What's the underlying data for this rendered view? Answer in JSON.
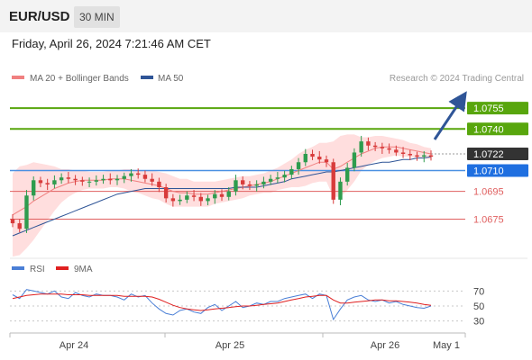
{
  "header": {
    "pair": "EUR/USD",
    "timeframe": "30 MIN"
  },
  "datetime": "Friday, April 26, 2024 7:21:46 AM CET",
  "copyright": "Research © 2024 Trading Central",
  "colors": {
    "resistance": "#58a60d",
    "support": "#e06060",
    "pivot": "#4a90e2",
    "up": "#2e9c4e",
    "down": "#d83b3b",
    "ma50": "#2f5597",
    "ma20": "#f08080",
    "band": "#ffd8d8",
    "rsi": "#4a7fd6",
    "rsi_ma": "#e02020",
    "arrow": "#2f5597",
    "current": "#333333"
  },
  "chart_data": [
    {
      "type": "candlestick",
      "name": "price",
      "legend": [
        "MA 20 + Bollinger Bands",
        "MA 50"
      ],
      "x_tick_labels": [
        "Apr 24",
        "Apr 25",
        "Apr 26",
        "May 1"
      ],
      "ylim": [
        1.065,
        1.077
      ],
      "levels": [
        {
          "value": 1.0755,
          "label": "1.0755",
          "kind": "resistance"
        },
        {
          "value": 1.074,
          "label": "1.0740",
          "kind": "resistance"
        },
        {
          "value": 1.071,
          "label": "1.0710",
          "kind": "pivot"
        },
        {
          "value": 1.0695,
          "label": "1.0695",
          "kind": "support"
        },
        {
          "value": 1.0675,
          "label": "1.0675",
          "kind": "support"
        }
      ],
      "current_price": {
        "value": 1.0722,
        "label": "1.0722"
      },
      "closes": [
        1.0672,
        1.0668,
        1.0692,
        1.0703,
        1.0701,
        1.07,
        1.0703,
        1.0705,
        1.0704,
        1.0703,
        1.0702,
        1.0702,
        1.0703,
        1.0704,
        1.0703,
        1.0704,
        1.0706,
        1.0708,
        1.0707,
        1.0704,
        1.0702,
        1.0698,
        1.069,
        1.0688,
        1.0689,
        1.0692,
        1.0691,
        1.0688,
        1.069,
        1.0693,
        1.0691,
        1.0695,
        1.0703,
        1.07,
        1.0699,
        1.07,
        1.0702,
        1.0704,
        1.0705,
        1.0707,
        1.0711,
        1.0716,
        1.0722,
        1.072,
        1.0718,
        1.0716,
        1.0689,
        1.0702,
        1.0712,
        1.0723,
        1.0731,
        1.0728,
        1.0727,
        1.0726,
        1.0725,
        1.0723,
        1.0722,
        1.0721,
        1.072,
        1.0721,
        1.072
      ],
      "ma50": [
        1.0663,
        1.0665,
        1.0667,
        1.0669,
        1.0671,
        1.0673,
        1.0675,
        1.0677,
        1.0679,
        1.0681,
        1.0683,
        1.0685,
        1.0687,
        1.0689,
        1.0691,
        1.0693,
        1.0694,
        1.0695,
        1.0696,
        1.0697,
        1.0697,
        1.0697,
        1.0697,
        1.0697,
        1.0697,
        1.0697,
        1.0697,
        1.0697,
        1.0697,
        1.0697,
        1.0697,
        1.0697,
        1.0698,
        1.0698,
        1.0698,
        1.0698,
        1.0699,
        1.07,
        1.0701,
        1.0702,
        1.0704,
        1.0705,
        1.0706,
        1.0707,
        1.0708,
        1.0709,
        1.0709,
        1.071,
        1.0711,
        1.0712,
        1.0713,
        1.0714,
        1.0715,
        1.0716,
        1.0716,
        1.0717,
        1.0718,
        1.0718,
        1.0719,
        1.0719,
        1.072
      ],
      "ma20": [
        1.0678,
        1.0681,
        1.0684,
        1.0688,
        1.0691,
        1.0694,
        1.0697,
        1.0699,
        1.0701,
        1.0702,
        1.0703,
        1.0703,
        1.0703,
        1.0703,
        1.0704,
        1.0704,
        1.0704,
        1.0703,
        1.0702,
        1.0701,
        1.07,
        1.0699,
        1.0697,
        1.0695,
        1.0694,
        1.0694,
        1.0693,
        1.0693,
        1.0693,
        1.0694,
        1.0695,
        1.0696,
        1.0697,
        1.0698,
        1.0699,
        1.07,
        1.0701,
        1.0702,
        1.0704,
        1.0706,
        1.0708,
        1.071,
        1.0712,
        1.0714,
        1.0716,
        1.0716,
        1.0711,
        1.0713,
        1.0716,
        1.0719,
        1.0722,
        1.0724,
        1.0726,
        1.0727,
        1.0727,
        1.0727,
        1.0726,
        1.0725,
        1.0724,
        1.0723,
        1.0722
      ],
      "band_width": [
        0.003,
        0.0032,
        0.003,
        0.0028,
        0.0024,
        0.002,
        0.0016,
        0.0012,
        0.001,
        0.0008,
        0.0007,
        0.0006,
        0.0006,
        0.0006,
        0.0006,
        0.0006,
        0.0007,
        0.0008,
        0.0008,
        0.0009,
        0.001,
        0.001,
        0.0011,
        0.0011,
        0.001,
        0.001,
        0.0009,
        0.0009,
        0.0009,
        0.0008,
        0.0008,
        0.0008,
        0.0008,
        0.0008,
        0.0007,
        0.0007,
        0.0007,
        0.0008,
        0.0008,
        0.0009,
        0.001,
        0.0012,
        0.0013,
        0.0013,
        0.0014,
        0.0014,
        0.002,
        0.0022,
        0.002,
        0.0017,
        0.0012,
        0.001,
        0.0009,
        0.0008,
        0.0007,
        0.0006,
        0.0006,
        0.0005,
        0.0005,
        0.0004,
        0.0004
      ]
    },
    {
      "type": "line",
      "name": "rsi-panel",
      "legend": [
        "RSI",
        "9MA"
      ],
      "ylim": [
        20,
        80
      ],
      "y_tick_labels": [
        "70",
        "50",
        "30"
      ],
      "y_ticks": [
        70,
        50,
        30
      ],
      "series": [
        {
          "name": "RSI",
          "values": [
            65,
            60,
            72,
            70,
            68,
            66,
            70,
            62,
            60,
            68,
            64,
            62,
            66,
            64,
            64,
            62,
            58,
            66,
            62,
            64,
            54,
            46,
            40,
            38,
            44,
            46,
            42,
            40,
            48,
            52,
            44,
            50,
            56,
            48,
            50,
            54,
            52,
            56,
            56,
            60,
            62,
            64,
            66,
            60,
            66,
            64,
            32,
            46,
            58,
            62,
            64,
            58,
            56,
            58,
            54,
            56,
            52,
            50,
            48,
            47,
            50
          ]
        },
        {
          "name": "9MA",
          "values": [
            60,
            62,
            64,
            65,
            66,
            66,
            66,
            66,
            65,
            65,
            65,
            64,
            64,
            64,
            64,
            64,
            63,
            63,
            63,
            63,
            62,
            59,
            55,
            51,
            48,
            46,
            45,
            44,
            45,
            46,
            47,
            48,
            49,
            50,
            50,
            51,
            52,
            53,
            54,
            56,
            58,
            60,
            62,
            63,
            64,
            64,
            58,
            54,
            54,
            55,
            56,
            57,
            58,
            58,
            57,
            57,
            56,
            55,
            54,
            52,
            51
          ]
        }
      ]
    }
  ]
}
